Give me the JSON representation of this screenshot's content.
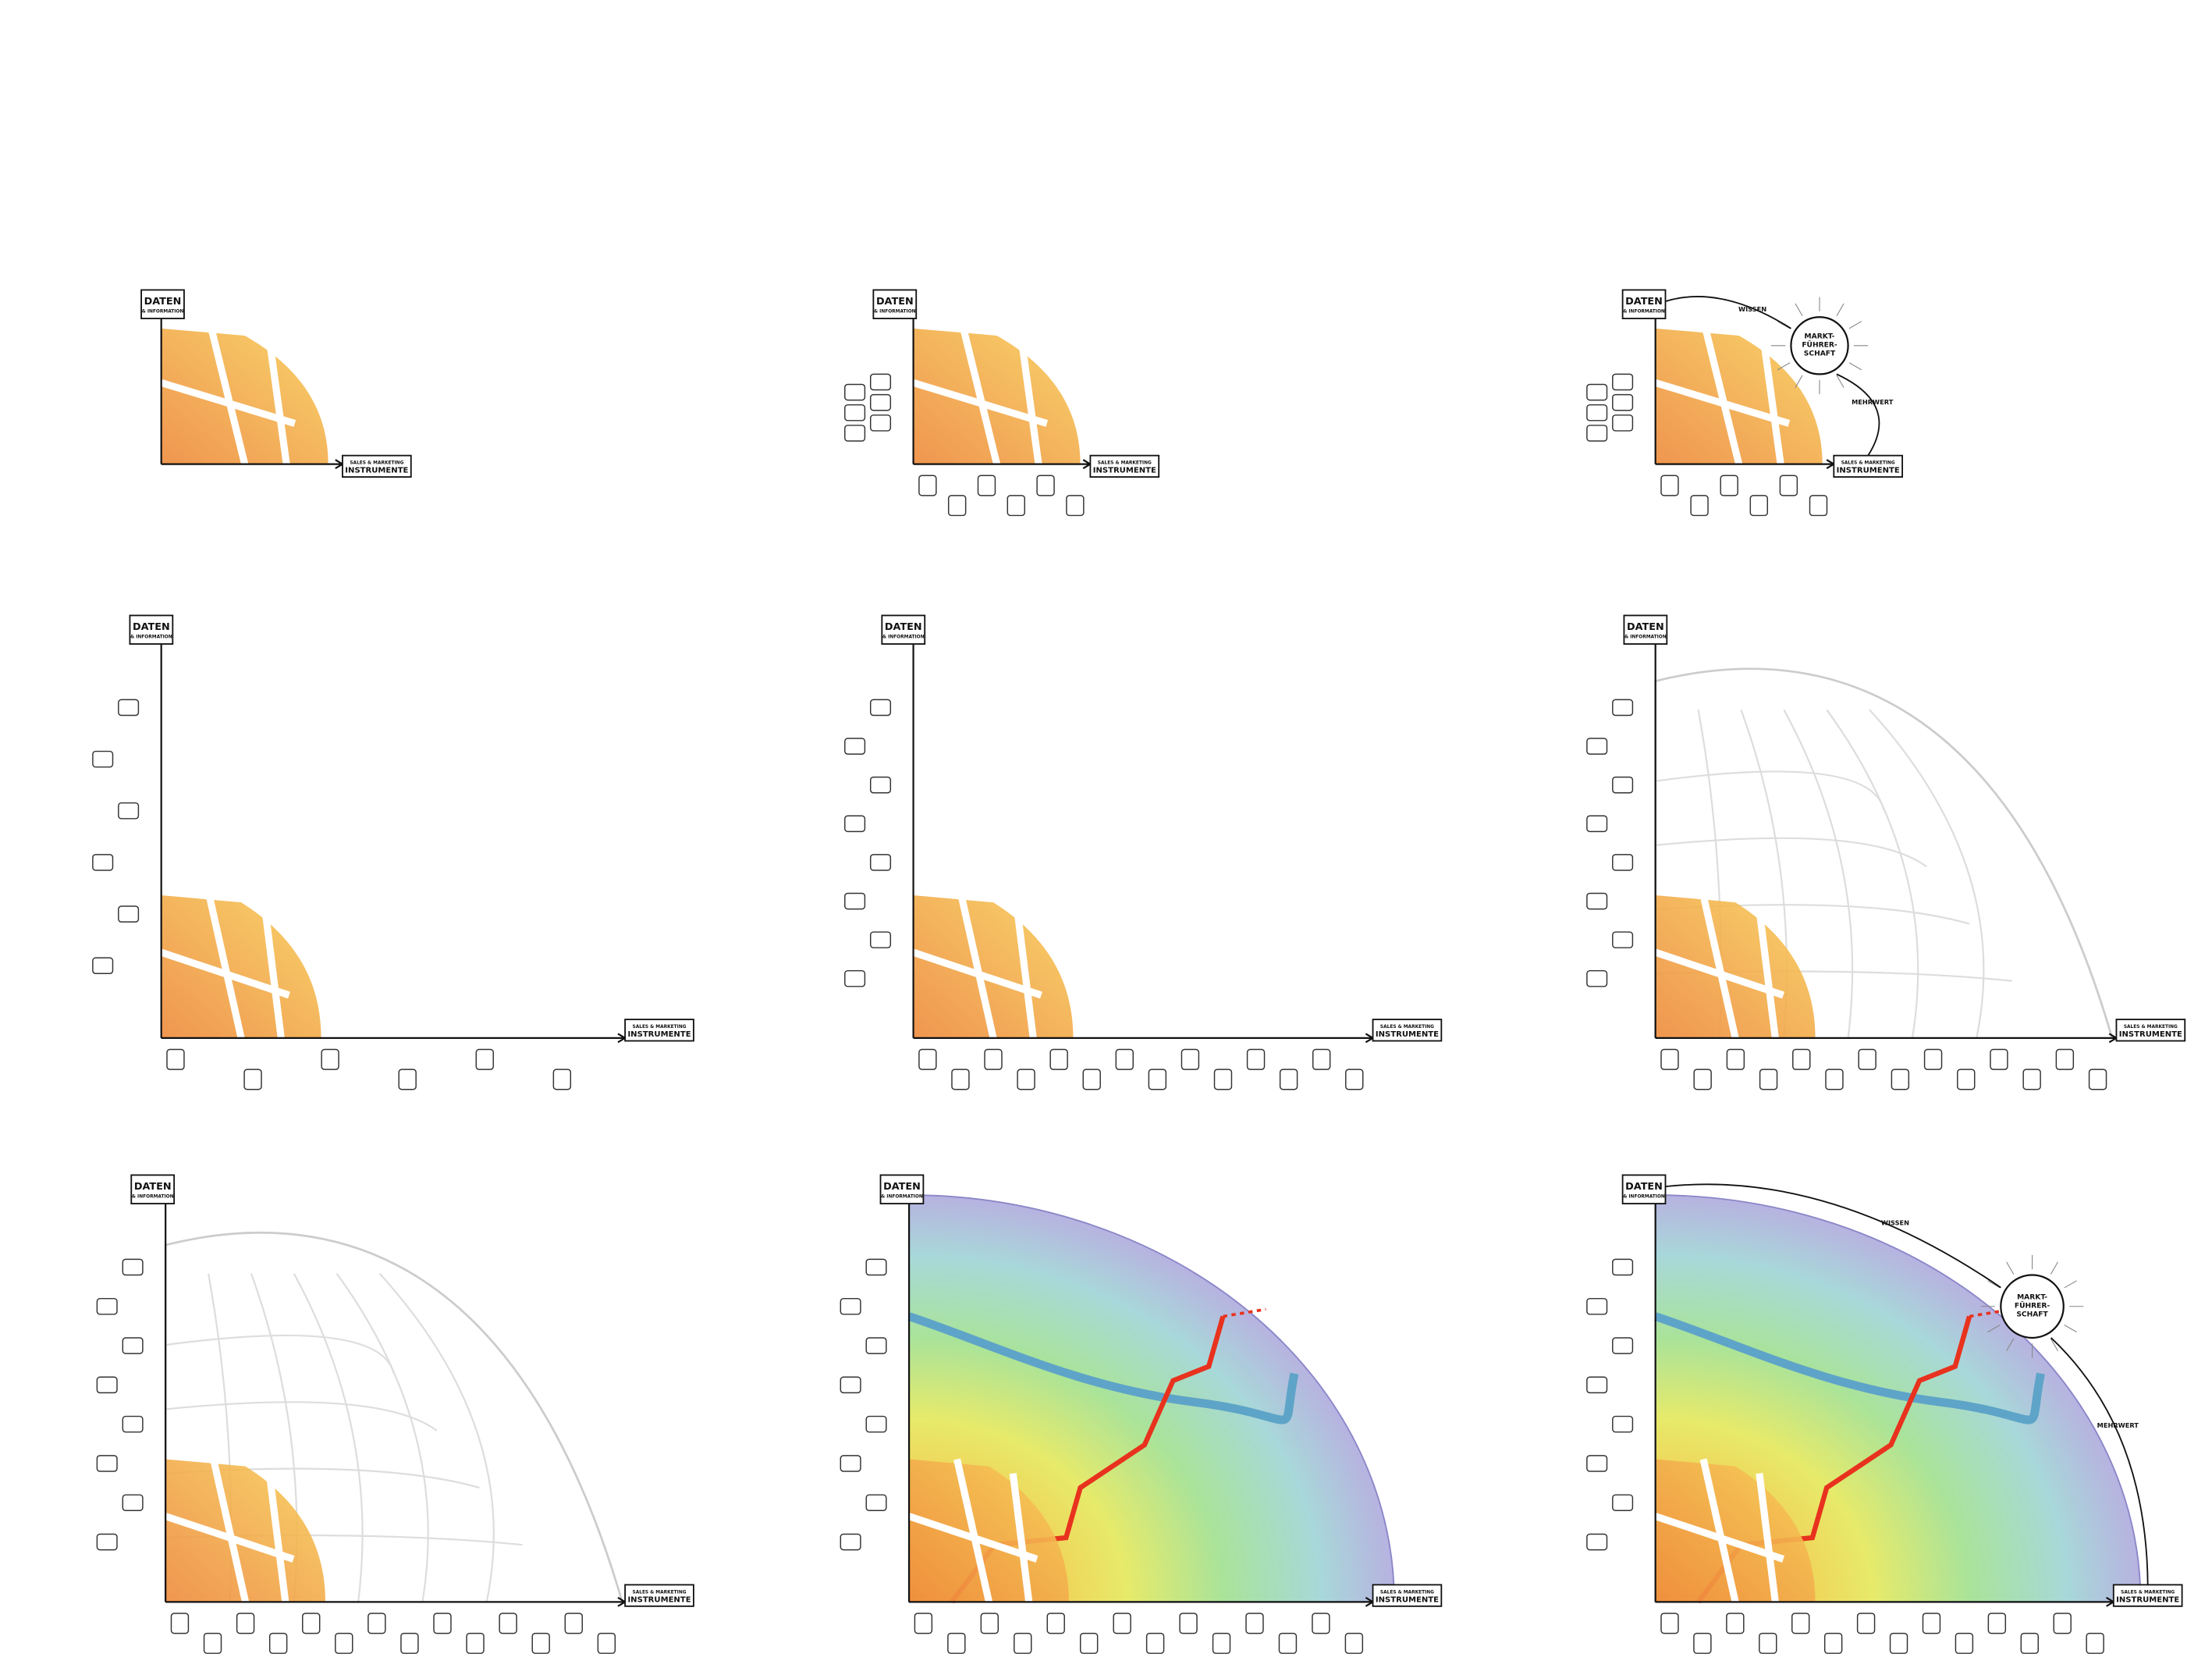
{
  "panels": [
    {
      "y_title": "DATEN",
      "y_subtitle": "& INFORMATION",
      "x_subtitle": "SALES & MARKETING",
      "x_title": "INSTRUMENTE"
    },
    {
      "y_title": "DATEN",
      "y_subtitle": "& INFORMATION",
      "x_subtitle": "SALES & MARKETING",
      "x_title": "INSTRUMENTE"
    },
    {
      "y_title": "DATEN",
      "y_subtitle": "& INFORMATION",
      "x_subtitle": "SALES & MARKETING",
      "x_title": "INSTRUMENTE",
      "top_arrow": "WISSEN",
      "goal": [
        "MARKT-",
        "FÜHRER-",
        "SCHAFT"
      ],
      "side_arrow": "MEHRWERT"
    },
    {
      "y_title": "DATEN",
      "y_subtitle": "& INFORMATION",
      "x_subtitle": "SALES & MARKETING",
      "x_title": "INSTRUMENTE"
    },
    {
      "y_title": "DATEN",
      "y_subtitle": "& INFORMATION",
      "x_subtitle": "SALES & MARKETING",
      "x_title": "INSTRUMENTE"
    },
    {
      "y_title": "DATEN",
      "y_subtitle": "& INFORMATION",
      "x_subtitle": "SALES & MARKETING",
      "x_title": "INSTRUMENTE"
    },
    {
      "y_title": "DATEN",
      "y_subtitle": "& INFORMATION",
      "x_subtitle": "SALES & MARKETING",
      "x_title": "INSTRUMENTE"
    },
    {
      "y_title": "DATEN",
      "y_subtitle": "& INFORMATION",
      "x_subtitle": "SALES & MARKETING",
      "x_title": "INSTRUMENTE"
    },
    {
      "y_title": "DATEN",
      "y_subtitle": "& INFORMATION",
      "x_subtitle": "SALES & MARKETING",
      "x_title": "INSTRUMENTE",
      "top_arrow": "WISSEN",
      "goal": [
        "MARKT-",
        "FÜHRER-",
        "SCHAFT"
      ],
      "side_arrow": "MEHRWERT"
    }
  ]
}
